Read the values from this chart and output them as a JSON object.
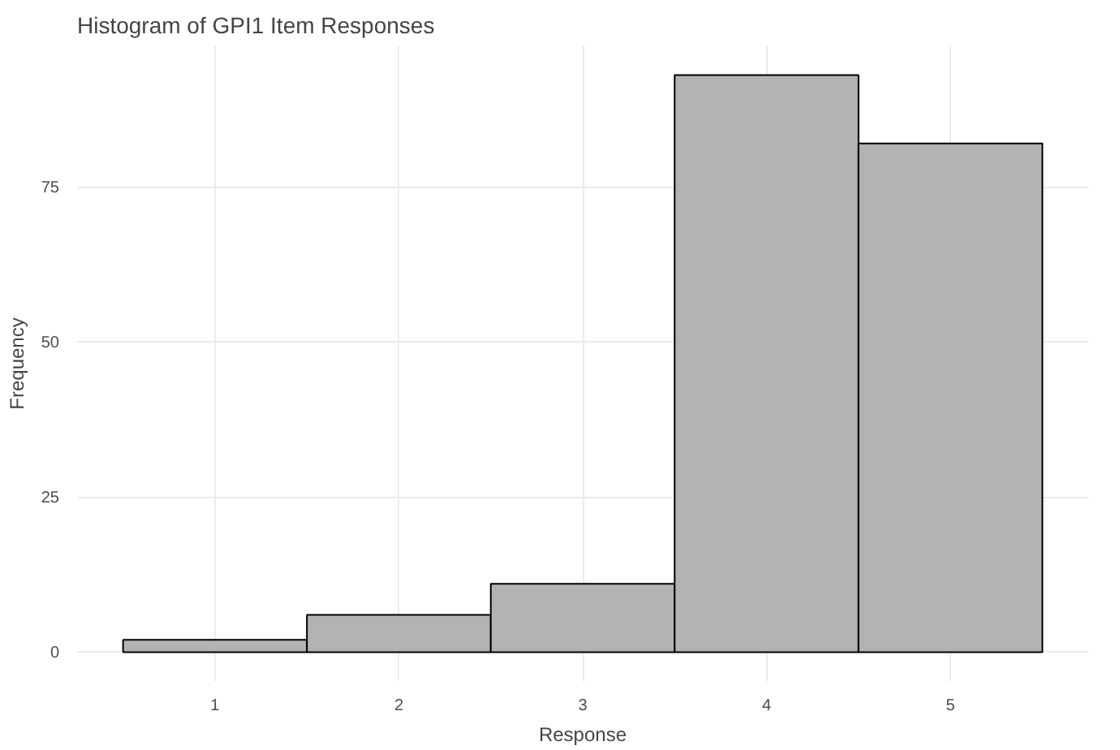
{
  "chart_data": {
    "type": "histogram",
    "title": "Histogram of GPI1 Item Responses",
    "xlabel": "Response",
    "ylabel": "Frequency",
    "bins": [
      0.5,
      1.5,
      2.5,
      3.5,
      4.5,
      5.5
    ],
    "values": [
      2,
      6,
      11,
      93,
      82
    ],
    "color": "#b3b3b3",
    "xlim": [
      0.25,
      5.75
    ],
    "xticks": [
      1,
      2,
      3,
      4,
      5
    ],
    "ylim": [
      -4.65,
      97.65
    ],
    "yticks": [
      0,
      25,
      50,
      75
    ],
    "grid": true
  }
}
